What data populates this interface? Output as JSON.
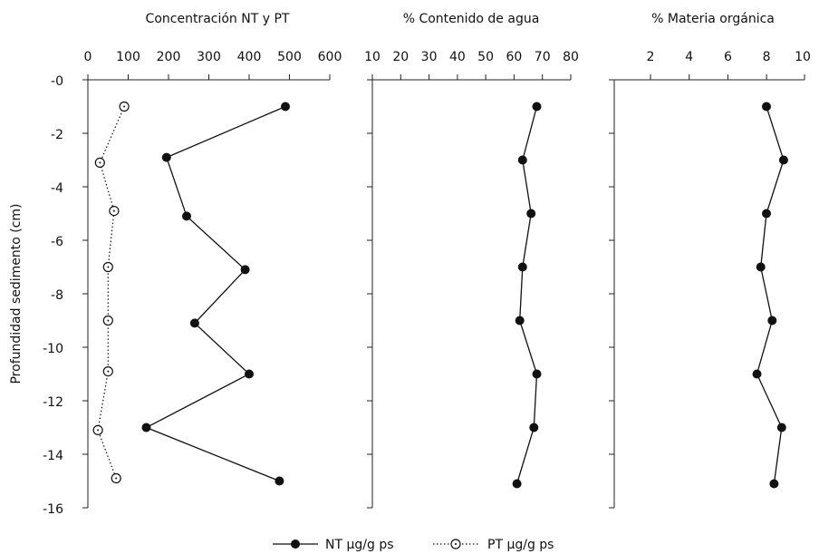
{
  "y_axis": {
    "label": "Profundidad sedimento (cm)",
    "ticks": [
      "-0",
      "-2",
      "-4",
      "-6",
      "-8",
      "-10",
      "-12",
      "-14",
      "-16"
    ]
  },
  "legend": {
    "nt": "NT μg/g ps",
    "pt": "PT μg/g ps"
  },
  "chart_data": [
    {
      "type": "line",
      "title": "Concentración NT y PT",
      "xlabel": "",
      "ylabel": "Profundidad sedimento (cm)",
      "xlim": [
        0,
        600
      ],
      "ylim": [
        -16,
        0
      ],
      "x_ticks": [
        "0",
        "100",
        "200",
        "300",
        "400",
        "500",
        "600"
      ],
      "series": [
        {
          "name": "NT μg/g ps",
          "marker": "filled-circle",
          "line": "solid",
          "points": [
            {
              "x": 490,
              "y": -1
            },
            {
              "x": 195,
              "y": -2.9
            },
            {
              "x": 245,
              "y": -5.1
            },
            {
              "x": 390,
              "y": -7.1
            },
            {
              "x": 265,
              "y": -9.1
            },
            {
              "x": 400,
              "y": -11.0
            },
            {
              "x": 145,
              "y": -13.0
            },
            {
              "x": 475,
              "y": -15.0
            }
          ]
        },
        {
          "name": "PT μg/g ps",
          "marker": "open-circle",
          "line": "dotted",
          "points": [
            {
              "x": 90,
              "y": -1
            },
            {
              "x": 30,
              "y": -3.1
            },
            {
              "x": 65,
              "y": -4.9
            },
            {
              "x": 50,
              "y": -7.0
            },
            {
              "x": 50,
              "y": -9.0
            },
            {
              "x": 50,
              "y": -10.9
            },
            {
              "x": 25,
              "y": -13.1
            },
            {
              "x": 70,
              "y": -14.9
            }
          ]
        }
      ]
    },
    {
      "type": "line",
      "title": "% Contenido de agua",
      "xlabel": "",
      "xlim": [
        10,
        80
      ],
      "ylim": [
        -16,
        0
      ],
      "x_ticks": [
        "10",
        "20",
        "30",
        "40",
        "50",
        "60",
        "70",
        "80"
      ],
      "series": [
        {
          "marker": "filled-circle",
          "line": "solid",
          "points": [
            {
              "x": 68,
              "y": -1
            },
            {
              "x": 63,
              "y": -3.0
            },
            {
              "x": 66,
              "y": -5.0
            },
            {
              "x": 63,
              "y": -7.0
            },
            {
              "x": 62,
              "y": -9.0
            },
            {
              "x": 68,
              "y": -11.0
            },
            {
              "x": 67,
              "y": -13.0
            },
            {
              "x": 61,
              "y": -15.1
            }
          ]
        }
      ]
    },
    {
      "type": "line",
      "title": "% Materia orgánica",
      "xlabel": "",
      "xlim": [
        0,
        10
      ],
      "ylim": [
        -16,
        0
      ],
      "x_ticks": [
        "2",
        "4",
        "6",
        "8",
        "10"
      ],
      "series": [
        {
          "marker": "filled-circle",
          "line": "solid",
          "points": [
            {
              "x": 8.0,
              "y": -1
            },
            {
              "x": 8.9,
              "y": -3.0
            },
            {
              "x": 8.0,
              "y": -5.0
            },
            {
              "x": 7.7,
              "y": -7.0
            },
            {
              "x": 8.3,
              "y": -9.0
            },
            {
              "x": 7.5,
              "y": -11.0
            },
            {
              "x": 8.8,
              "y": -13.0
            },
            {
              "x": 8.4,
              "y": -15.1
            }
          ]
        }
      ]
    }
  ]
}
